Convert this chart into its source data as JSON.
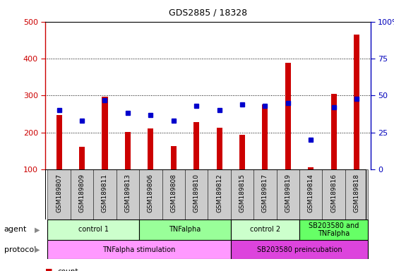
{
  "title": "GDS2885 / 18328",
  "samples": [
    "GSM189807",
    "GSM189809",
    "GSM189811",
    "GSM189813",
    "GSM189806",
    "GSM189808",
    "GSM189810",
    "GSM189812",
    "GSM189815",
    "GSM189817",
    "GSM189819",
    "GSM189814",
    "GSM189816",
    "GSM189818"
  ],
  "counts": [
    248,
    162,
    297,
    201,
    210,
    163,
    228,
    212,
    193,
    275,
    388,
    105,
    305,
    465
  ],
  "percentile_ranks": [
    40,
    33,
    47,
    38,
    37,
    33,
    43,
    40,
    44,
    43,
    45,
    20,
    42,
    48
  ],
  "bar_color": "#cc0000",
  "dot_color": "#0000cc",
  "ymin": 100,
  "ymax": 500,
  "yticks_left": [
    100,
    200,
    300,
    400,
    500
  ],
  "yticks_right": [
    0,
    25,
    50,
    75,
    100
  ],
  "agent_groups": [
    {
      "label": "control 1",
      "start": 0,
      "end": 3,
      "color": "#ccffcc"
    },
    {
      "label": "TNFalpha",
      "start": 4,
      "end": 7,
      "color": "#99ff99"
    },
    {
      "label": "control 2",
      "start": 8,
      "end": 10,
      "color": "#ccffcc"
    },
    {
      "label": "SB203580 and\nTNFalpha",
      "start": 11,
      "end": 13,
      "color": "#66ff66"
    }
  ],
  "protocol_groups": [
    {
      "label": "TNFalpha stimulation",
      "start": 0,
      "end": 7,
      "color": "#ff99ff"
    },
    {
      "label": "SB203580 preincubation",
      "start": 8,
      "end": 13,
      "color": "#dd44dd"
    }
  ],
  "tick_color_left": "#cc0000",
  "tick_color_right": "#0000bb",
  "bar_width": 0.25,
  "dot_size": 4
}
